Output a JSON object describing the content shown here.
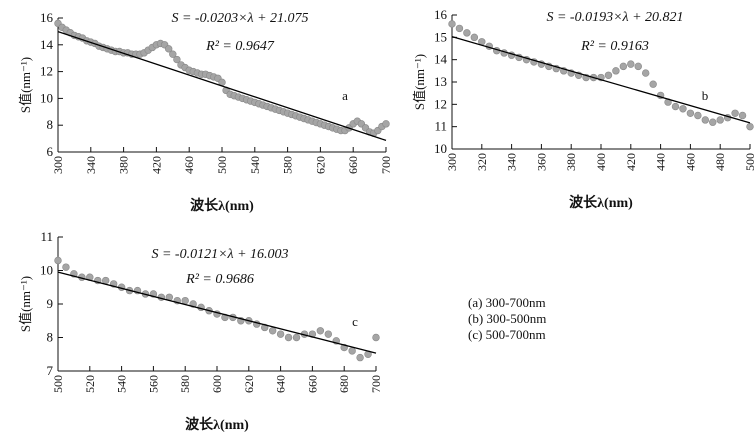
{
  "chart_data": [
    {
      "type": "scatter",
      "panel_label": "a",
      "xlabel": "波长λ(nm)",
      "ylabel": "S值(nm⁻¹)",
      "xlim": [
        300,
        700
      ],
      "ylim": [
        6,
        16
      ],
      "x_ticks": [
        300,
        340,
        380,
        420,
        460,
        500,
        540,
        580,
        620,
        660,
        700
      ],
      "y_ticks": [
        6,
        8,
        10,
        12,
        14,
        16
      ],
      "equation": "S = -0.0203×λ + 21.075",
      "r_squared": "R² = 0.9647",
      "fit": {
        "slope": -0.0203,
        "intercept": 21.075
      },
      "series": [
        {
          "x": [
            300,
            305,
            310,
            315,
            320,
            325,
            330,
            335,
            340,
            345,
            350,
            355,
            360,
            365,
            370,
            375,
            380,
            385,
            390,
            395,
            400,
            405,
            410,
            415,
            420,
            425,
            430,
            435,
            440,
            445,
            450,
            455,
            460,
            465,
            470,
            475,
            480,
            485,
            490,
            495,
            500,
            505,
            510,
            515,
            520,
            525,
            530,
            535,
            540,
            545,
            550,
            555,
            560,
            565,
            570,
            575,
            580,
            585,
            590,
            595,
            600,
            605,
            610,
            615,
            620,
            625,
            630,
            635,
            640,
            645,
            650,
            655,
            660,
            665,
            670,
            675,
            680,
            685,
            690,
            695,
            700
          ],
          "y": [
            15.6,
            15.3,
            15.1,
            14.9,
            14.7,
            14.6,
            14.5,
            14.3,
            14.2,
            14.1,
            13.9,
            13.8,
            13.7,
            13.6,
            13.5,
            13.5,
            13.4,
            13.4,
            13.3,
            13.3,
            13.3,
            13.4,
            13.6,
            13.8,
            14.0,
            14.1,
            14.0,
            13.7,
            13.3,
            12.9,
            12.5,
            12.3,
            12.1,
            12.0,
            11.9,
            11.8,
            11.8,
            11.7,
            11.6,
            11.5,
            11.2,
            10.6,
            10.3,
            10.2,
            10.1,
            10.0,
            9.9,
            9.8,
            9.7,
            9.6,
            9.5,
            9.4,
            9.3,
            9.2,
            9.1,
            9.0,
            8.9,
            8.8,
            8.7,
            8.6,
            8.5,
            8.4,
            8.3,
            8.2,
            8.1,
            8.0,
            7.9,
            7.8,
            7.7,
            7.6,
            7.6,
            7.8,
            8.1,
            8.3,
            8.1,
            7.8,
            7.5,
            7.4,
            7.6,
            7.9,
            8.1
          ]
        }
      ]
    },
    {
      "type": "scatter",
      "panel_label": "b",
      "xlabel": "波长λ(nm)",
      "ylabel": "S值(nm⁻¹)",
      "xlim": [
        300,
        500
      ],
      "ylim": [
        10,
        16
      ],
      "x_ticks": [
        300,
        320,
        340,
        360,
        380,
        400,
        420,
        440,
        460,
        480,
        500
      ],
      "y_ticks": [
        10,
        11,
        12,
        13,
        14,
        15,
        16
      ],
      "equation": "S = -0.0193×λ + 20.821",
      "r_squared": "R² = 0.9163",
      "fit": {
        "slope": -0.0193,
        "intercept": 20.821
      },
      "series": [
        {
          "x": [
            300,
            305,
            310,
            315,
            320,
            325,
            330,
            335,
            340,
            345,
            350,
            355,
            360,
            365,
            370,
            375,
            380,
            385,
            390,
            395,
            400,
            405,
            410,
            415,
            420,
            425,
            430,
            435,
            440,
            445,
            450,
            455,
            460,
            465,
            470,
            475,
            480,
            485,
            490,
            495,
            500
          ],
          "y": [
            15.6,
            15.4,
            15.2,
            15.0,
            14.8,
            14.6,
            14.4,
            14.3,
            14.2,
            14.1,
            14.0,
            13.9,
            13.8,
            13.7,
            13.6,
            13.5,
            13.4,
            13.3,
            13.2,
            13.2,
            13.2,
            13.3,
            13.5,
            13.7,
            13.8,
            13.7,
            13.4,
            12.9,
            12.4,
            12.1,
            11.9,
            11.8,
            11.6,
            11.5,
            11.3,
            11.2,
            11.3,
            11.4,
            11.6,
            11.5,
            11.0
          ]
        }
      ]
    },
    {
      "type": "scatter",
      "panel_label": "c",
      "xlabel": "波长λ(nm)",
      "ylabel": "S值(nm⁻¹)",
      "xlim": [
        500,
        700
      ],
      "ylim": [
        7,
        11
      ],
      "x_ticks": [
        500,
        520,
        540,
        560,
        580,
        600,
        620,
        640,
        660,
        680,
        700
      ],
      "y_ticks": [
        7,
        8,
        9,
        10,
        11
      ],
      "equation": "S = -0.0121×λ + 16.003",
      "r_squared": "R² = 0.9686",
      "fit": {
        "slope": -0.0121,
        "intercept": 16.003
      },
      "series": [
        {
          "x": [
            500,
            505,
            510,
            515,
            520,
            525,
            530,
            535,
            540,
            545,
            550,
            555,
            560,
            565,
            570,
            575,
            580,
            585,
            590,
            595,
            600,
            605,
            610,
            615,
            620,
            625,
            630,
            635,
            640,
            645,
            650,
            655,
            660,
            665,
            670,
            675,
            680,
            685,
            690,
            695,
            700
          ],
          "y": [
            10.3,
            10.1,
            9.9,
            9.8,
            9.8,
            9.7,
            9.7,
            9.6,
            9.5,
            9.4,
            9.4,
            9.3,
            9.3,
            9.2,
            9.2,
            9.1,
            9.1,
            9.0,
            8.9,
            8.8,
            8.7,
            8.6,
            8.6,
            8.5,
            8.5,
            8.4,
            8.3,
            8.2,
            8.1,
            8.0,
            8.0,
            8.1,
            8.1,
            8.2,
            8.1,
            7.9,
            7.7,
            7.6,
            7.4,
            7.5,
            8.0
          ]
        }
      ]
    }
  ],
  "legend": [
    "(a) 300-700nm",
    "(b) 300-500nm",
    "(c) 500-700nm"
  ]
}
